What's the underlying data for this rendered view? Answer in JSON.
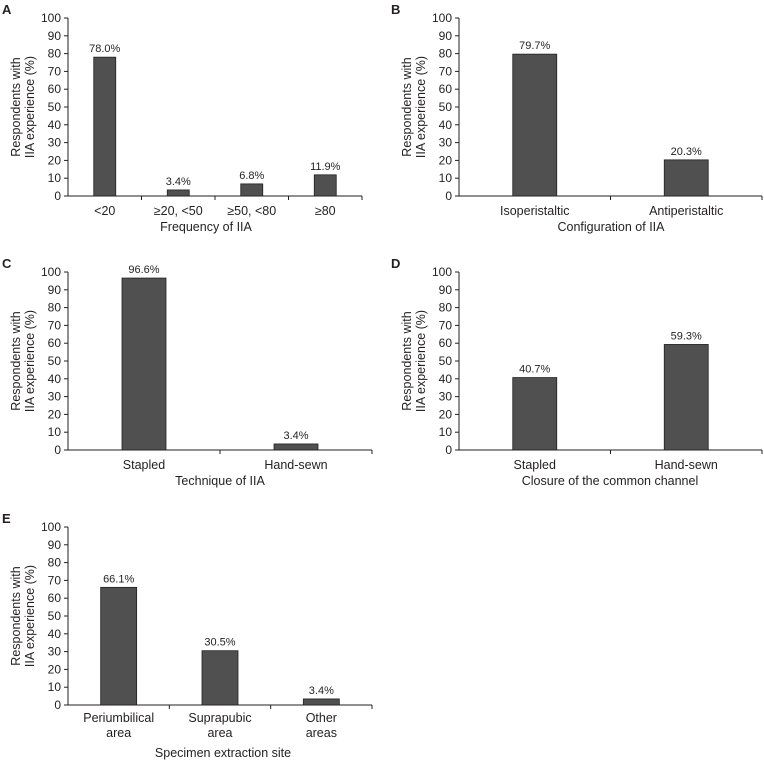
{
  "colors": {
    "bar": "#505050",
    "axis": "#231f20",
    "background": "#ffffff"
  },
  "chart_data": [
    {
      "panel": "A",
      "type": "bar",
      "title": "",
      "ylabel": [
        "Respondents with",
        "IIA experience (%)"
      ],
      "xlabel": "Frequency of IIA",
      "ylim": [
        0,
        100
      ],
      "yticks": [
        "0",
        "10",
        "20",
        "30",
        "40",
        "50",
        "60",
        "70",
        "80",
        "90",
        "100"
      ],
      "categories": [
        [
          "<20"
        ],
        [
          "≥20, <50"
        ],
        [
          "≥50, <80"
        ],
        [
          "≥80"
        ]
      ],
      "values": [
        78.0,
        3.4,
        6.8,
        11.9
      ],
      "value_labels": [
        "78.0%",
        "3.4%",
        "6.8%",
        "11.9%"
      ]
    },
    {
      "panel": "B",
      "type": "bar",
      "title": "",
      "ylabel": [
        "Respondents with",
        "IIA experience (%)"
      ],
      "xlabel": "Configuration of IIA",
      "ylim": [
        0,
        100
      ],
      "yticks": [
        "0",
        "10",
        "20",
        "30",
        "40",
        "50",
        "60",
        "70",
        "80",
        "90",
        "100"
      ],
      "categories": [
        [
          "Isoperistaltic"
        ],
        [
          "Antiperistaltic"
        ]
      ],
      "values": [
        79.7,
        20.3
      ],
      "value_labels": [
        "79.7%",
        "20.3%"
      ]
    },
    {
      "panel": "C",
      "type": "bar",
      "title": "",
      "ylabel": [
        "Respondents with",
        "IIA experience (%)"
      ],
      "xlabel": "Technique of IIA",
      "ylim": [
        0,
        100
      ],
      "yticks": [
        "0",
        "10",
        "20",
        "30",
        "40",
        "50",
        "60",
        "70",
        "80",
        "90",
        "100"
      ],
      "categories": [
        [
          "Stapled"
        ],
        [
          "Hand-sewn"
        ]
      ],
      "values": [
        96.6,
        3.4
      ],
      "value_labels": [
        "96.6%",
        "3.4%"
      ]
    },
    {
      "panel": "D",
      "type": "bar",
      "title": "",
      "ylabel": [
        "Respondents with",
        "IIA experience (%)"
      ],
      "xlabel": "Closure of the common channel",
      "ylim": [
        0,
        100
      ],
      "yticks": [
        "0",
        "10",
        "20",
        "30",
        "40",
        "50",
        "60",
        "70",
        "80",
        "90",
        "100"
      ],
      "categories": [
        [
          "Stapled"
        ],
        [
          "Hand-sewn"
        ]
      ],
      "values": [
        40.7,
        59.3
      ],
      "value_labels": [
        "40.7%",
        "59.3%"
      ]
    },
    {
      "panel": "E",
      "type": "bar",
      "title": "",
      "ylabel": [
        "Respondents with",
        "IIA experience (%)"
      ],
      "xlabel": "Specimen extraction site",
      "ylim": [
        0,
        100
      ],
      "yticks": [
        "0",
        "10",
        "20",
        "30",
        "40",
        "50",
        "60",
        "70",
        "80",
        "90",
        "100"
      ],
      "categories": [
        [
          "Periumbilical",
          "area"
        ],
        [
          "Suprapubic",
          "area"
        ],
        [
          "Other",
          "areas"
        ]
      ],
      "values": [
        66.1,
        30.5,
        3.4
      ],
      "value_labels": [
        "66.1%",
        "30.5%",
        "3.4%"
      ]
    }
  ]
}
